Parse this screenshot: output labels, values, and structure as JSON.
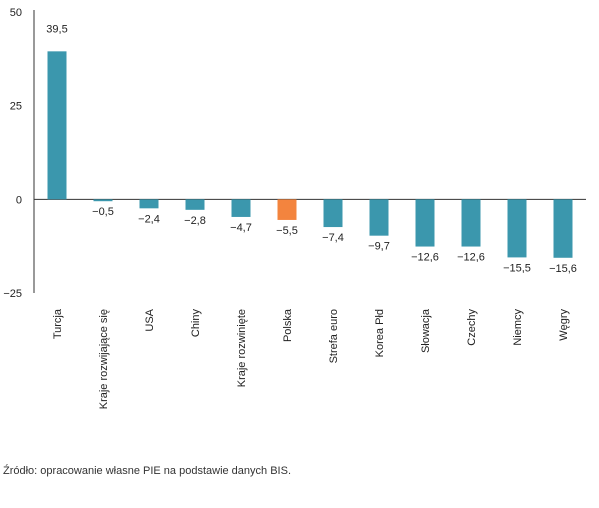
{
  "chart_data": {
    "type": "bar",
    "categories": [
      "Turcja",
      "Kraje rozwijające się",
      "USA",
      "Chiny",
      "Kraje rozwinięte",
      "Polska",
      "Strefa euro",
      "Korea Płd",
      "Słowacja",
      "Czechy",
      "Niemcy",
      "Węgry"
    ],
    "values": [
      39.5,
      -0.5,
      -2.4,
      -2.8,
      -4.7,
      -5.5,
      -7.4,
      -9.7,
      -12.6,
      -12.6,
      -15.5,
      -15.6
    ],
    "value_labels": [
      "39,5",
      "−0,5",
      "−2,4",
      "−2,8",
      "−4,7",
      "−5,5",
      "−7,4",
      "−9,7",
      "−12,6",
      "−12,6",
      "−15,5",
      "−15,6"
    ],
    "highlight": "Polska",
    "ylim": [
      -25,
      50
    ],
    "yticks": [
      50,
      25,
      0,
      -25
    ],
    "ytick_labels": [
      "50",
      "25",
      "0",
      "−25"
    ],
    "colors": {
      "bar": "#3b97ad",
      "highlight": "#f3843e",
      "axis": "#333333"
    },
    "grid": false,
    "legend": "none"
  },
  "source_text": "Źródło: opracowanie własne PIE na podstawie danych BIS."
}
